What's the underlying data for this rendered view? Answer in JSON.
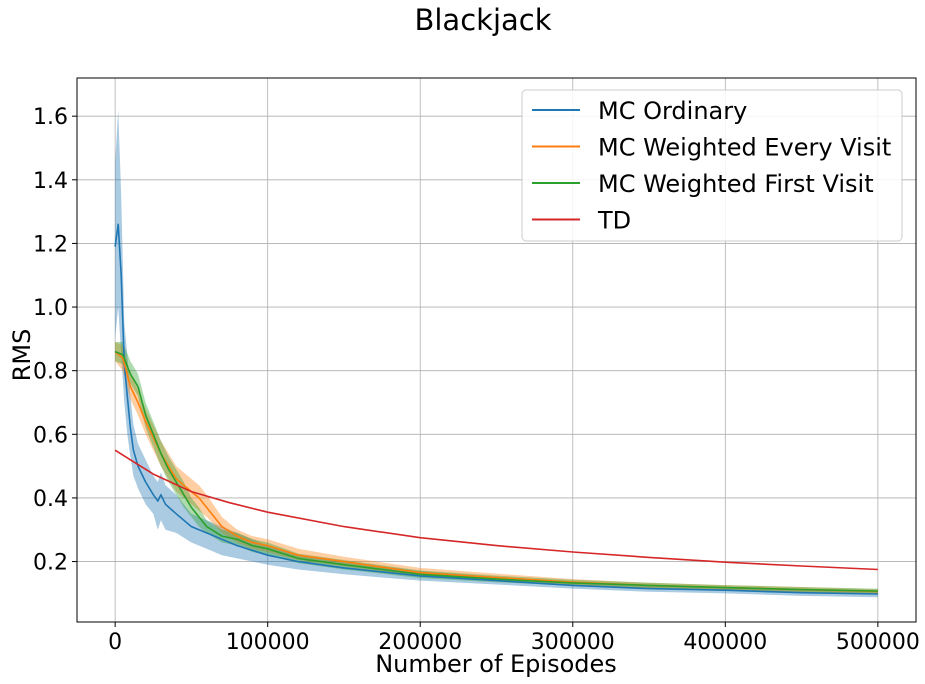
{
  "chart_data": {
    "type": "line",
    "title": "Blackjack",
    "xlabel": "Number of Episodes",
    "ylabel": "RMS",
    "xlim": [
      -25000,
      525000
    ],
    "ylim": [
      0.01,
      1.72
    ],
    "xticks": [
      0,
      100000,
      200000,
      300000,
      400000,
      500000
    ],
    "xtick_labels": [
      "0",
      "100000",
      "200000",
      "300000",
      "400000",
      "500000"
    ],
    "yticks": [
      0.2,
      0.4,
      0.6,
      0.8,
      1.0,
      1.2,
      1.4,
      1.6
    ],
    "ytick_labels": [
      "0.2",
      "0.4",
      "0.6",
      "0.8",
      "1.0",
      "1.2",
      "1.4",
      "1.6"
    ],
    "grid": true,
    "legend_position": "top-right",
    "series": [
      {
        "name": "MC Ordinary",
        "color": "#1f77b4",
        "x": [
          0,
          2000,
          4000,
          6000,
          8000,
          10000,
          12000,
          15000,
          20000,
          25000,
          28000,
          30000,
          33000,
          40000,
          50000,
          60000,
          70000,
          80000,
          100000,
          120000,
          150000,
          200000,
          250000,
          300000,
          350000,
          400000,
          450000,
          500000
        ],
        "y": [
          1.19,
          1.26,
          1.1,
          0.82,
          0.72,
          0.62,
          0.55,
          0.5,
          0.45,
          0.41,
          0.39,
          0.41,
          0.38,
          0.35,
          0.31,
          0.29,
          0.27,
          0.25,
          0.22,
          0.2,
          0.18,
          0.155,
          0.14,
          0.125,
          0.115,
          0.11,
          0.102,
          0.098
        ],
        "lower": [
          0.9,
          1.0,
          0.85,
          0.7,
          0.6,
          0.53,
          0.47,
          0.43,
          0.38,
          0.35,
          0.3,
          0.33,
          0.3,
          0.29,
          0.26,
          0.24,
          0.22,
          0.21,
          0.19,
          0.175,
          0.16,
          0.14,
          0.128,
          0.115,
          0.105,
          0.1,
          0.092,
          0.088
        ],
        "upper": [
          1.45,
          1.62,
          1.35,
          0.95,
          0.85,
          0.72,
          0.63,
          0.57,
          0.52,
          0.47,
          0.45,
          0.48,
          0.44,
          0.41,
          0.35,
          0.33,
          0.31,
          0.29,
          0.25,
          0.22,
          0.2,
          0.17,
          0.152,
          0.135,
          0.125,
          0.12,
          0.112,
          0.108
        ]
      },
      {
        "name": "MC Weighted Every Visit",
        "color": "#ff7f0e",
        "x": [
          0,
          5000,
          10000,
          15000,
          20000,
          25000,
          30000,
          35000,
          40000,
          45000,
          50000,
          55000,
          60000,
          70000,
          80000,
          90000,
          100000,
          120000,
          150000,
          200000,
          250000,
          300000,
          350000,
          400000,
          450000,
          500000
        ],
        "y": [
          0.86,
          0.84,
          0.75,
          0.7,
          0.64,
          0.59,
          0.54,
          0.5,
          0.46,
          0.44,
          0.42,
          0.4,
          0.37,
          0.31,
          0.28,
          0.26,
          0.25,
          0.22,
          0.2,
          0.165,
          0.15,
          0.135,
          0.125,
          0.118,
          0.112,
          0.106
        ],
        "lower": [
          0.83,
          0.8,
          0.71,
          0.66,
          0.6,
          0.55,
          0.5,
          0.46,
          0.42,
          0.4,
          0.38,
          0.36,
          0.34,
          0.29,
          0.26,
          0.24,
          0.23,
          0.205,
          0.185,
          0.155,
          0.14,
          0.127,
          0.117,
          0.11,
          0.104,
          0.099
        ],
        "upper": [
          0.89,
          0.88,
          0.79,
          0.74,
          0.68,
          0.63,
          0.58,
          0.54,
          0.5,
          0.48,
          0.46,
          0.44,
          0.41,
          0.34,
          0.3,
          0.28,
          0.27,
          0.24,
          0.215,
          0.18,
          0.162,
          0.145,
          0.133,
          0.126,
          0.12,
          0.113
        ]
      },
      {
        "name": "MC Weighted First Visit",
        "color": "#2ca02c",
        "x": [
          0,
          5000,
          10000,
          15000,
          20000,
          25000,
          30000,
          35000,
          40000,
          45000,
          50000,
          55000,
          60000,
          70000,
          80000,
          90000,
          100000,
          120000,
          150000,
          200000,
          250000,
          300000,
          350000,
          400000,
          450000,
          500000
        ],
        "y": [
          0.86,
          0.85,
          0.79,
          0.75,
          0.66,
          0.6,
          0.54,
          0.49,
          0.45,
          0.41,
          0.37,
          0.34,
          0.31,
          0.28,
          0.27,
          0.25,
          0.24,
          0.21,
          0.19,
          0.16,
          0.145,
          0.133,
          0.125,
          0.118,
          0.112,
          0.107
        ],
        "lower": [
          0.83,
          0.82,
          0.76,
          0.72,
          0.62,
          0.56,
          0.5,
          0.45,
          0.41,
          0.37,
          0.34,
          0.31,
          0.29,
          0.26,
          0.25,
          0.23,
          0.22,
          0.195,
          0.175,
          0.148,
          0.135,
          0.124,
          0.117,
          0.11,
          0.104,
          0.1
        ],
        "upper": [
          0.89,
          0.89,
          0.83,
          0.79,
          0.7,
          0.64,
          0.58,
          0.53,
          0.49,
          0.45,
          0.4,
          0.37,
          0.33,
          0.3,
          0.29,
          0.27,
          0.26,
          0.225,
          0.205,
          0.172,
          0.156,
          0.143,
          0.134,
          0.126,
          0.12,
          0.115
        ]
      },
      {
        "name": "TD",
        "color": "#d62728",
        "x": [
          0,
          10000,
          25000,
          50000,
          75000,
          100000,
          150000,
          200000,
          250000,
          300000,
          350000,
          400000,
          450000,
          500000
        ],
        "y": [
          0.55,
          0.52,
          0.475,
          0.42,
          0.385,
          0.355,
          0.31,
          0.275,
          0.25,
          0.23,
          0.213,
          0.198,
          0.186,
          0.175
        ]
      }
    ]
  }
}
